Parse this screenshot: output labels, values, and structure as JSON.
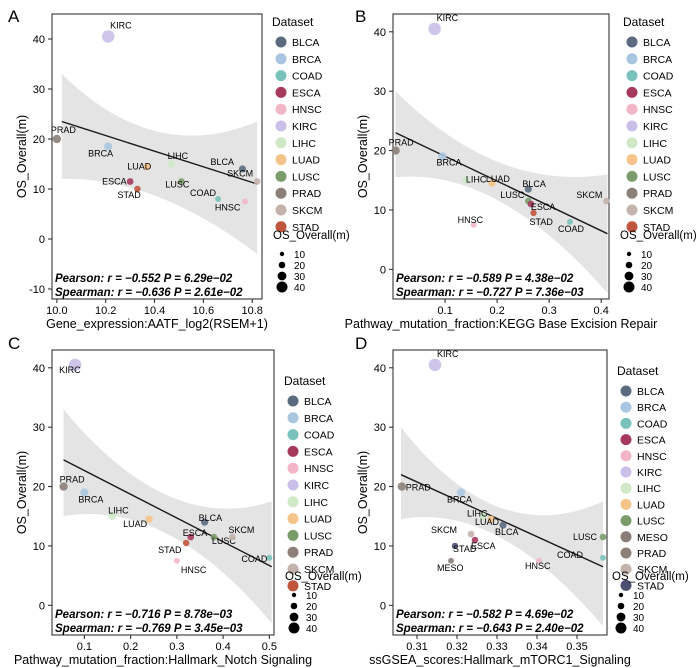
{
  "colors": {
    "BLCA": "#5a6b80",
    "BRCA": "#a8c6e0",
    "COAD": "#79c1bb",
    "ESCA": "#a53a5c",
    "HNSC": "#f2b6c6",
    "KIRC": "#c9bfe8",
    "LIHC": "#cfe8c6",
    "LUAD": "#f5c48a",
    "LUSC": "#7a9c6a",
    "MESO": "#8a7d78",
    "PRAD": "#8c7f78",
    "SKCM": "#c4b2ac",
    "STAD": "#c0553e",
    "STAD_D": "#4b4f72",
    "band": "#e4e4e4",
    "line": "#1a1a1a",
    "text": "#000000"
  },
  "chart_data": [
    {
      "panel": "A",
      "type": "scatter",
      "xlabel": "Gene_expression:AATF_log2(RSEM+1)",
      "ylabel": "OS_Overall(m)",
      "xlim": [
        9.98,
        10.84
      ],
      "ylim": [
        -12,
        45
      ],
      "xticks": [
        10.0,
        10.2,
        10.4,
        10.6,
        10.8
      ],
      "xtick_labels": [
        "10.0",
        "10.2",
        "10.4",
        "10.6",
        "10.8"
      ],
      "yticks": [
        -10,
        0,
        10,
        20,
        30,
        40
      ],
      "fit": {
        "x0": 10.02,
        "y0": 23.5,
        "x1": 10.82,
        "y1": 11.0
      },
      "band": {
        "upper": [
          [
            10.02,
            33.0
          ],
          [
            10.4,
            21.5
          ],
          [
            10.82,
            23.5
          ]
        ],
        "lower": [
          [
            10.02,
            12.0
          ],
          [
            10.4,
            8.5
          ],
          [
            10.82,
            -3.0
          ]
        ]
      },
      "stats": {
        "pearson": "Pearson: r = −0.552 P = 6.29e−02",
        "spearman": "Spearman: r = −0.636 P = 2.61e−02"
      },
      "legend": {
        "title": "Dataset",
        "items": [
          "BLCA",
          "BRCA",
          "COAD",
          "ESCA",
          "HNSC",
          "KIRC",
          "LIHC",
          "LUAD",
          "LUSC",
          "PRAD",
          "SKCM",
          "STAD"
        ],
        "size_title": "OS_Overall(m)",
        "size_items": [
          "10",
          "20",
          "30",
          "40"
        ]
      },
      "points": [
        {
          "label": "KIRC",
          "x": 10.21,
          "y": 40.5,
          "size": 40.5,
          "dx": 2,
          "dy": -8,
          "anchor": "start"
        },
        {
          "label": "PRAD",
          "x": 10.0,
          "y": 20.0,
          "size": 20,
          "dx": -6,
          "dy": -6,
          "anchor": "start"
        },
        {
          "label": "BRCA",
          "x": 10.21,
          "y": 18.5,
          "size": 18.5,
          "dx": -20,
          "dy": 10,
          "anchor": "start"
        },
        {
          "label": "LUAD",
          "x": 10.37,
          "y": 14.5,
          "size": 14.5,
          "dx": -20,
          "dy": 3,
          "anchor": "start"
        },
        {
          "label": "LIHC",
          "x": 10.47,
          "y": 15.0,
          "size": 15,
          "dx": -4,
          "dy": -5,
          "anchor": "start"
        },
        {
          "label": "ESCA",
          "x": 10.3,
          "y": 11.5,
          "size": 11.5,
          "dx": -28,
          "dy": 3,
          "anchor": "start"
        },
        {
          "label": "STAD",
          "x": 10.33,
          "y": 10.0,
          "size": 10,
          "dx": -20,
          "dy": 9,
          "anchor": "start"
        },
        {
          "label": "LUSC",
          "x": 10.51,
          "y": 11.5,
          "size": 11.5,
          "dx": -16,
          "dy": 6,
          "anchor": "start"
        },
        {
          "label": "BLCA",
          "x": 10.76,
          "y": 14.0,
          "size": 14,
          "dx": -32,
          "dy": -4,
          "anchor": "start"
        },
        {
          "label": "SKCM",
          "x": 10.82,
          "y": 11.5,
          "size": 11.5,
          "dx": -30,
          "dy": -5,
          "anchor": "start"
        },
        {
          "label": "COAD",
          "x": 10.66,
          "y": 8.0,
          "size": 8,
          "dx": -28,
          "dy": -3,
          "anchor": "start"
        },
        {
          "label": "HNSC",
          "x": 10.77,
          "y": 7.5,
          "size": 7.5,
          "dx": -30,
          "dy": 9,
          "anchor": "start"
        }
      ]
    },
    {
      "panel": "B",
      "type": "scatter",
      "xlabel": "Pathway_mutation_fraction:KEGG Base Excision Repair",
      "ylabel": "OS_Overall(m)",
      "xlim": [
        0.0,
        0.415
      ],
      "ylim": [
        -5,
        43
      ],
      "xticks": [
        0.1,
        0.2,
        0.3,
        0.4
      ],
      "xtick_labels": [
        "0.1",
        "0.2",
        "0.3",
        "0.4"
      ],
      "yticks": [
        0,
        10,
        20,
        30,
        40
      ],
      "fit": {
        "x0": 0.005,
        "y0": 23.0,
        "x1": 0.412,
        "y1": 6.0
      },
      "band": {
        "upper": [
          [
            0.005,
            30.0
          ],
          [
            0.2,
            18.0
          ],
          [
            0.412,
            16.0
          ]
        ],
        "lower": [
          [
            0.005,
            15.5
          ],
          [
            0.2,
            11.5
          ],
          [
            0.412,
            -4.0
          ]
        ]
      },
      "stats": {
        "pearson": "Pearson: r = −0.589 P = 4.38e−02",
        "spearman": "Spearman: r = −0.727 P = 7.36e−03"
      },
      "legend": {
        "title": "Dataset",
        "items": [
          "BLCA",
          "BRCA",
          "COAD",
          "ESCA",
          "HNSC",
          "KIRC",
          "LIHC",
          "LUAD",
          "LUSC",
          "PRAD",
          "SKCM",
          "STAD"
        ],
        "size_title": "OS_Overall(m)",
        "size_items": [
          "10",
          "20",
          "30",
          "40"
        ]
      },
      "points": [
        {
          "label": "KIRC",
          "x": 0.08,
          "y": 40.5,
          "size": 40.5,
          "dx": 2,
          "dy": -8,
          "anchor": "start"
        },
        {
          "label": "PRAD",
          "x": 0.005,
          "y": 20.0,
          "size": 20,
          "dx": -7,
          "dy": -5,
          "anchor": "start"
        },
        {
          "label": "BRCA",
          "x": 0.095,
          "y": 19.0,
          "size": 19,
          "dx": -6,
          "dy": 9,
          "anchor": "start"
        },
        {
          "label": "LIHC",
          "x": 0.14,
          "y": 15.0,
          "size": 15,
          "dx": 0,
          "dy": 2,
          "anchor": "start"
        },
        {
          "label": "LUAD",
          "x": 0.19,
          "y": 14.5,
          "size": 14.5,
          "dx": -6,
          "dy": -1,
          "anchor": "start"
        },
        {
          "label": "BLCA",
          "x": 0.26,
          "y": 13.5,
          "size": 13.5,
          "dx": -6,
          "dy": -2,
          "anchor": "start"
        },
        {
          "label": "LUSC",
          "x": 0.26,
          "y": 11.5,
          "size": 11.5,
          "dx": -28,
          "dy": -3,
          "anchor": "start"
        },
        {
          "label": "ESCA",
          "x": 0.265,
          "y": 11.0,
          "size": 11,
          "dx": 0,
          "dy": 6,
          "anchor": "start"
        },
        {
          "label": "STAD",
          "x": 0.27,
          "y": 9.5,
          "size": 9.5,
          "dx": -4,
          "dy": 12,
          "anchor": "start"
        },
        {
          "label": "HNSC",
          "x": 0.155,
          "y": 7.5,
          "size": 7.5,
          "dx": -16,
          "dy": -2,
          "anchor": "start"
        },
        {
          "label": "COAD",
          "x": 0.34,
          "y": 8.0,
          "size": 8,
          "dx": -12,
          "dy": 10,
          "anchor": "start"
        },
        {
          "label": "SKCM",
          "x": 0.41,
          "y": 11.5,
          "size": 11.5,
          "dx": -30,
          "dy": -3,
          "anchor": "start"
        }
      ]
    },
    {
      "panel": "C",
      "type": "scatter",
      "xlabel": "Pathway_mutation_fraction:Hallmark_Notch Signaling",
      "ylabel": "OS_Overall(m)",
      "xlim": [
        0.03,
        0.51
      ],
      "ylim": [
        -5,
        43
      ],
      "xticks": [
        0.1,
        0.2,
        0.3,
        0.4,
        0.5
      ],
      "xtick_labels": [
        "0.1",
        "0.2",
        "0.3",
        "0.4",
        "0.5"
      ],
      "yticks": [
        0,
        10,
        20,
        30,
        40
      ],
      "fit": {
        "x0": 0.055,
        "y0": 24.5,
        "x1": 0.505,
        "y1": 6.5
      },
      "band": {
        "upper": [
          [
            0.055,
            33.0
          ],
          [
            0.28,
            18.5
          ],
          [
            0.505,
            17.5
          ]
        ],
        "lower": [
          [
            0.055,
            15.0
          ],
          [
            0.28,
            12.0
          ],
          [
            0.505,
            -3.0
          ]
        ]
      },
      "stats": {
        "pearson": "Pearson: r = −0.716 P = 8.78e−03",
        "spearman": "Spearman: r = −0.769 P = 3.45e−03"
      },
      "legend": {
        "title": "Dataset",
        "items": [
          "BLCA",
          "BRCA",
          "COAD",
          "ESCA",
          "HNSC",
          "KIRC",
          "LIHC",
          "LUAD",
          "LUSC",
          "PRAD",
          "SKCM",
          "STAD"
        ],
        "size_title": "OS_Overall(m)",
        "size_items": [
          "10",
          "20",
          "30",
          "40"
        ]
      },
      "points": [
        {
          "label": "KIRC",
          "x": 0.08,
          "y": 40.5,
          "size": 40.5,
          "dx": -16,
          "dy": 8,
          "anchor": "start"
        },
        {
          "label": "PRAD",
          "x": 0.055,
          "y": 20.0,
          "size": 20,
          "dx": -4,
          "dy": -4,
          "anchor": "start"
        },
        {
          "label": "BRCA",
          "x": 0.1,
          "y": 19.0,
          "size": 19,
          "dx": -6,
          "dy": 10,
          "anchor": "start"
        },
        {
          "label": "LIHC",
          "x": 0.16,
          "y": 15.0,
          "size": 15,
          "dx": -4,
          "dy": -3,
          "anchor": "start"
        },
        {
          "label": "LUAD",
          "x": 0.24,
          "y": 14.5,
          "size": 14.5,
          "dx": -26,
          "dy": 8,
          "anchor": "start"
        },
        {
          "label": "BLCA",
          "x": 0.36,
          "y": 14.0,
          "size": 14,
          "dx": -6,
          "dy": -1,
          "anchor": "start"
        },
        {
          "label": "ESCA",
          "x": 0.33,
          "y": 11.5,
          "size": 11.5,
          "dx": -8,
          "dy": -1,
          "anchor": "start"
        },
        {
          "label": "STAD",
          "x": 0.32,
          "y": 10.5,
          "size": 10.5,
          "dx": -28,
          "dy": 10,
          "anchor": "start"
        },
        {
          "label": "LUSC",
          "x": 0.38,
          "y": 11.5,
          "size": 11.5,
          "dx": -2,
          "dy": 7,
          "anchor": "start"
        },
        {
          "label": "SKCM",
          "x": 0.42,
          "y": 11.5,
          "size": 11.5,
          "dx": -4,
          "dy": -4,
          "anchor": "start"
        },
        {
          "label": "HNSC",
          "x": 0.3,
          "y": 7.5,
          "size": 7.5,
          "dx": 4,
          "dy": 12,
          "anchor": "start"
        },
        {
          "label": "COAD",
          "x": 0.5,
          "y": 8.0,
          "size": 8,
          "dx": -28,
          "dy": 4,
          "anchor": "start"
        }
      ]
    },
    {
      "panel": "D",
      "type": "scatter",
      "xlabel": "ssGSEA_scores:Hallmark_mTORC1_Signaling",
      "ylabel": "OS_Overall(m)",
      "xlim": [
        0.304,
        0.3575
      ],
      "ylim": [
        -5,
        43
      ],
      "xticks": [
        0.31,
        0.32,
        0.33,
        0.34,
        0.35
      ],
      "xtick_labels": [
        "0.31",
        "0.32",
        "0.33",
        "0.34",
        "0.35"
      ],
      "yticks": [
        0,
        10,
        20,
        30,
        40
      ],
      "fit": {
        "x0": 0.306,
        "y0": 22.0,
        "x1": 0.3565,
        "y1": 6.5
      },
      "band": {
        "upper": [
          [
            0.306,
            30.0
          ],
          [
            0.33,
            16.5
          ],
          [
            0.3565,
            17.5
          ]
        ],
        "lower": [
          [
            0.306,
            14.5
          ],
          [
            0.33,
            11.5
          ],
          [
            0.3565,
            -3.5
          ]
        ]
      },
      "stats": {
        "pearson": "Pearson: r = −0.582 P = 4.69e−02",
        "spearman": "Spearman: r = −0.643 P = 2.40e−02"
      },
      "legend": {
        "title": "Dataset",
        "items": [
          "BLCA",
          "BRCA",
          "COAD",
          "ESCA",
          "HNSC",
          "KIRC",
          "LIHC",
          "LUAD",
          "LUSC",
          "MESO",
          "PRAD",
          "SKCM",
          "STAD"
        ],
        "size_title": "OS_Overall(m)",
        "size_items": [
          "10",
          "20",
          "30",
          "40"
        ]
      },
      "points": [
        {
          "label": "KIRC",
          "x": 0.3145,
          "y": 40.5,
          "size": 40.5,
          "dx": 2,
          "dy": -8,
          "anchor": "start"
        },
        {
          "label": "PRAD",
          "x": 0.3062,
          "y": 20.0,
          "size": 20,
          "dx": 4,
          "dy": 4,
          "anchor": "start"
        },
        {
          "label": "BRCA",
          "x": 0.321,
          "y": 19.0,
          "size": 19,
          "dx": -14,
          "dy": 10,
          "anchor": "start"
        },
        {
          "label": "LIHC",
          "x": 0.3265,
          "y": 15.0,
          "size": 15,
          "dx": -16,
          "dy": 0,
          "anchor": "start"
        },
        {
          "label": "LUAD",
          "x": 0.3285,
          "y": 14.5,
          "size": 14.5,
          "dx": -16,
          "dy": 6,
          "anchor": "start"
        },
        {
          "label": "BLCA",
          "x": 0.3315,
          "y": 13.5,
          "size": 13.5,
          "dx": -8,
          "dy": 10,
          "anchor": "start"
        },
        {
          "label": "SKCM",
          "x": 0.3235,
          "y": 12.0,
          "size": 12,
          "dx": -40,
          "dy": -1,
          "anchor": "start"
        },
        {
          "label": "ESCA",
          "x": 0.3245,
          "y": 11.0,
          "size": 11,
          "dx": -4,
          "dy": 9,
          "anchor": "start"
        },
        {
          "label": "STAD",
          "x": 0.3195,
          "y": 10.0,
          "size": 10,
          "dx": -2,
          "dy": 6,
          "anchor": "start"
        },
        {
          "label": "MESO",
          "x": 0.3185,
          "y": 7.5,
          "size": 7.5,
          "dx": -14,
          "dy": 10,
          "anchor": "start"
        },
        {
          "label": "HNSC",
          "x": 0.3405,
          "y": 7.5,
          "size": 7.5,
          "dx": -14,
          "dy": 8,
          "anchor": "start"
        },
        {
          "label": "COAD",
          "x": 0.3565,
          "y": 8.0,
          "size": 8,
          "dx": -46,
          "dy": 0,
          "anchor": "start"
        },
        {
          "label": "LUSC",
          "x": 0.3565,
          "y": 11.5,
          "size": 11.5,
          "dx": -30,
          "dy": 3,
          "anchor": "start"
        }
      ]
    }
  ]
}
